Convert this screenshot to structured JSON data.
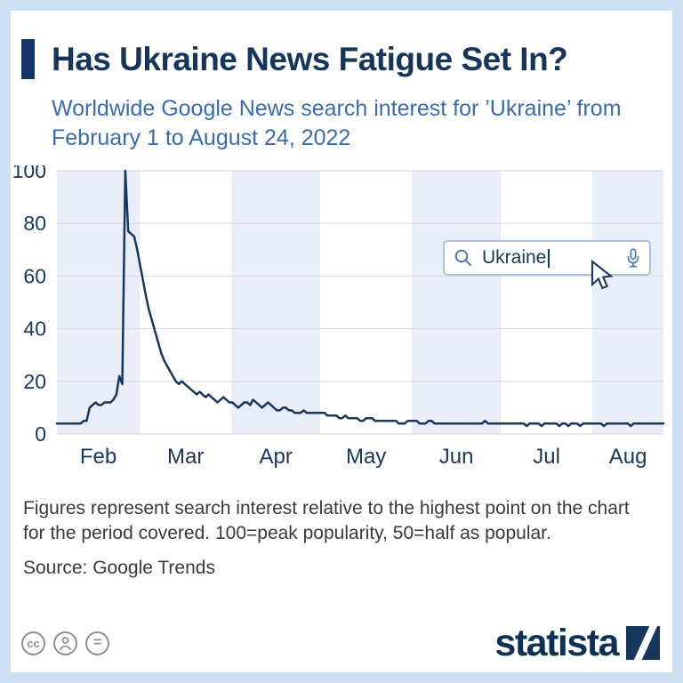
{
  "header": {
    "title": "Has Ukraine News Fatigue Set In?",
    "subtitle": "Worldwide Google News search interest for ’Ukraine’ from February 1 to August 24, 2022"
  },
  "search_overlay": {
    "query": "Ukraine",
    "icons": [
      "search-icon",
      "microphone-icon",
      "mouse-pointer-icon"
    ]
  },
  "footnote": "Figures represent search interest relative to the highest point on the chart for the period covered. 100=peak popularity, 50=half as popular.",
  "source": "Source: Google Trends",
  "footer": {
    "license_icons": [
      "cc",
      "attribution-person",
      "equals"
    ],
    "cc_text": "cc",
    "equals_text": "=",
    "brand": "statista"
  },
  "colors": {
    "line": "#17375e",
    "band": "#e9edf8",
    "grid": "#d8d8d8",
    "axis_label": "#17375e",
    "accent": "#16356b",
    "subtitle_blue": "#3a6bb0"
  },
  "chart_data": {
    "type": "line",
    "title": "",
    "xlabel": "",
    "ylabel": "",
    "ylim": [
      0,
      100
    ],
    "yticks": [
      0,
      20,
      40,
      60,
      80,
      100
    ],
    "legend": "none",
    "grid": "horizontal",
    "period": "February 1 to August 24, 2022",
    "months": [
      {
        "label": "Feb",
        "days": 28,
        "shaded": true
      },
      {
        "label": "Mar",
        "days": 31,
        "shaded": false
      },
      {
        "label": "Apr",
        "days": 30,
        "shaded": true
      },
      {
        "label": "May",
        "days": 31,
        "shaded": false
      },
      {
        "label": "Jun",
        "days": 30,
        "shaded": true
      },
      {
        "label": "Jul",
        "days": 31,
        "shaded": false
      },
      {
        "label": "Aug",
        "days": 24,
        "shaded": true
      }
    ],
    "series_name": "Search interest for 'Ukraine'",
    "values": [
      4,
      4,
      4,
      4,
      4,
      4,
      4,
      4,
      4,
      5,
      5,
      10,
      11,
      12,
      11,
      11,
      12,
      12,
      12,
      13,
      15,
      22,
      19,
      100,
      77,
      76,
      75,
      70,
      64,
      58,
      52,
      47,
      43,
      39,
      35,
      31,
      28,
      26,
      24,
      22,
      20,
      19,
      20,
      19,
      18,
      17,
      16,
      15,
      16,
      15,
      14,
      15,
      14,
      13,
      12,
      13,
      14,
      13,
      12,
      12,
      11,
      10,
      11,
      12,
      12,
      11,
      13,
      12,
      11,
      10,
      11,
      12,
      11,
      10,
      9,
      9,
      10,
      10,
      9,
      9,
      8,
      8,
      8,
      9,
      8,
      8,
      8,
      8,
      8,
      8,
      8,
      7,
      7,
      7,
      7,
      6,
      6,
      7,
      6,
      6,
      6,
      6,
      5,
      5,
      6,
      6,
      6,
      5,
      5,
      5,
      5,
      5,
      5,
      5,
      5,
      4,
      4,
      4,
      5,
      5,
      5,
      5,
      4,
      4,
      4,
      5,
      5,
      4,
      4,
      4,
      4,
      4,
      4,
      4,
      4,
      4,
      4,
      4,
      4,
      4,
      4,
      4,
      4,
      4,
      5,
      4,
      4,
      4,
      4,
      4,
      4,
      4,
      4,
      4,
      4,
      4,
      4,
      4,
      3,
      4,
      4,
      4,
      4,
      3,
      4,
      4,
      4,
      4,
      4,
      3,
      4,
      4,
      3,
      4,
      4,
      4,
      3,
      4,
      4,
      4,
      4,
      4,
      4,
      4,
      3,
      4,
      4,
      4,
      4,
      4,
      4,
      4,
      4,
      3,
      4,
      4,
      4,
      4,
      4,
      4,
      4,
      4,
      4,
      4,
      4
    ]
  }
}
